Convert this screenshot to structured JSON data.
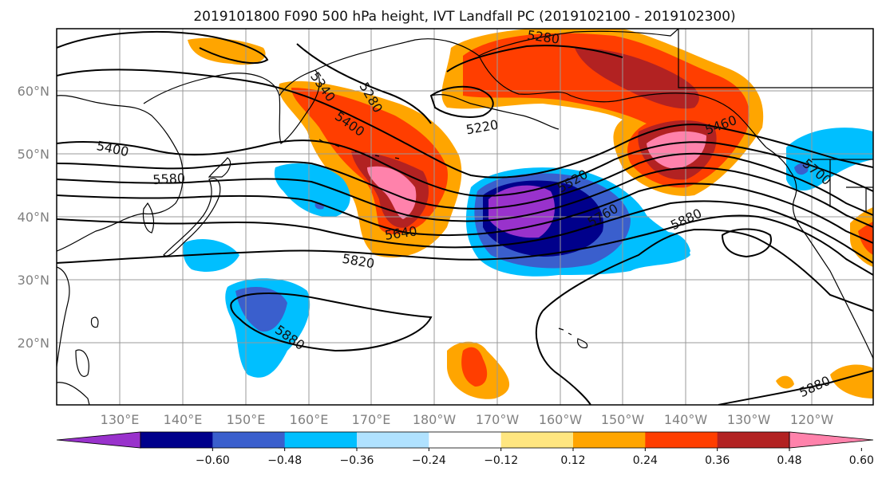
{
  "title": "2019101800 F090 500 hPa height, IVT Landfall PC (2019102100 - 2019102300)",
  "lon_labels": [
    "130°E",
    "140°E",
    "150°E",
    "160°E",
    "170°E",
    "180°W",
    "170°W",
    "160°W",
    "150°W",
    "140°W",
    "130°W",
    "120°W"
  ],
  "lat_labels": [
    "60°N",
    "50°N",
    "40°N",
    "30°N",
    "20°N"
  ],
  "colorbar": {
    "colors": [
      "#9932cc",
      "#00008b",
      "#3a5fcd",
      "#00bfff",
      "#b0e2ff",
      "#ffffff",
      "#ffe680",
      "#ffa500",
      "#ff3e00",
      "#b22222",
      "#ff82ab"
    ],
    "labels": [
      "−0.60",
      "−0.48",
      "−0.36",
      "−0.24",
      "−0.12",
      "0.12",
      "0.24",
      "0.36",
      "0.48",
      "0.60"
    ]
  },
  "contour_labels": [
    "5280",
    "5400",
    "5340",
    "5400",
    "5580",
    "5640",
    "5820",
    "5880",
    "5220",
    "5280",
    "5520",
    "5760",
    "5880",
    "5460",
    "5700",
    "5880"
  ],
  "colors": {
    "positive_max": "#ff82ab",
    "negative_max": "#9932cc"
  }
}
